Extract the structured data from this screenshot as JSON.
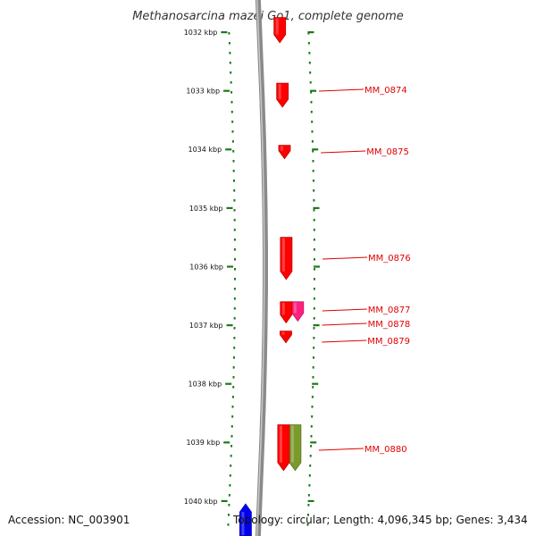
{
  "title": "Methanosarcina mazei Go1, complete genome",
  "scale_unit": "kbp",
  "ticks": [
    "1032 kbp",
    "1033 kbp",
    "1034 kbp",
    "1035 kbp",
    "1036 kbp",
    "1037 kbp",
    "1038 kbp",
    "1039 kbp",
    "1040 kbp"
  ],
  "genes": [
    {
      "label": "MM_0874",
      "start_kbp": 1032.87,
      "end_kbp": 1033.28,
      "strand": "forward",
      "color": "#ff0000"
    },
    {
      "label": "MM_0875",
      "start_kbp": 1033.93,
      "end_kbp": 1034.16,
      "strand": "forward",
      "color": "#ff0000"
    },
    {
      "label": "MM_0876",
      "start_kbp": 1035.5,
      "end_kbp": 1036.22,
      "strand": "forward",
      "color": "#ff0000"
    },
    {
      "label": "MM_0877",
      "start_kbp": 1036.6,
      "end_kbp": 1036.93,
      "strand": "forward",
      "color": "#ff2080"
    },
    {
      "label": "MM_0878",
      "start_kbp": 1036.6,
      "end_kbp": 1036.96,
      "strand": "forward",
      "color": "#ff0000"
    },
    {
      "label": "MM_0879",
      "start_kbp": 1037.1,
      "end_kbp": 1037.3,
      "strand": "forward",
      "color": "#ff0000"
    },
    {
      "label": "MM_0880",
      "start_kbp": 1038.7,
      "end_kbp": 1039.48,
      "strand": "forward",
      "color": "#ff0000"
    }
  ],
  "unlabeled_features": [
    {
      "start_kbp": 1031.75,
      "end_kbp": 1032.18,
      "strand": "forward",
      "color": "#ff0000",
      "lane": "inner"
    },
    {
      "start_kbp": 1038.7,
      "end_kbp": 1039.48,
      "strand": "forward",
      "color": "#7a9a2c",
      "lane": "outer"
    },
    {
      "start_kbp": 1040.05,
      "end_kbp": 1040.6,
      "strand": "reverse",
      "color": "#0000ee",
      "lane": "reverse"
    }
  ],
  "footer": {
    "accession": "Accession: NC_003901",
    "topology": "Topology: circular; Length: 4,096,345 bp; Genes: 3,434"
  },
  "colors": {
    "backbone": "#8a8a8a",
    "tick": "#1a7a1a",
    "label": "#e00000"
  }
}
